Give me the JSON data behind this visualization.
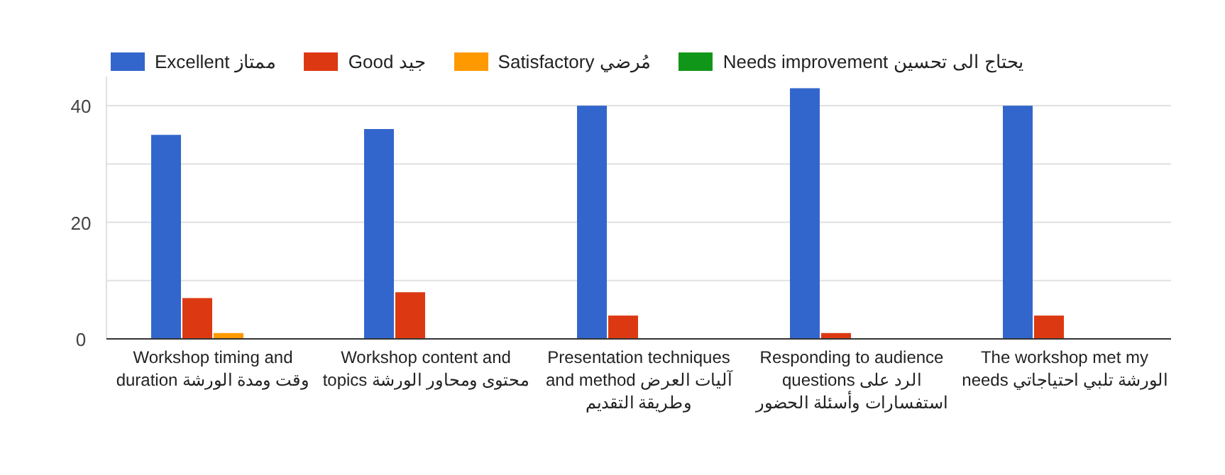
{
  "chart_data": {
    "type": "bar",
    "categories": [
      "Workshop timing and duration وقت ومدة الورشة",
      "Workshop content and topics محتوى ومحاور الورشة",
      "Presentation techniques and method آليات العرض وطريقة التقديم",
      "Responding to audience questions الرد على استفسارات وأسئلة الحضور",
      "The workshop met my needs الورشة تلبي احتياجاتي"
    ],
    "series": [
      {
        "name": "Excellent ممتاز",
        "color": "#3366cc",
        "values": [
          35,
          36,
          40,
          43,
          40
        ]
      },
      {
        "name": "Good جيد",
        "color": "#dc3912",
        "values": [
          7,
          8,
          4,
          1,
          4
        ]
      },
      {
        "name": "Satisfactory مُرضي",
        "color": "#ff9900",
        "values": [
          1,
          0,
          0,
          0,
          0
        ]
      },
      {
        "name": "Needs improvement يحتاج الى تحسين",
        "color": "#109618",
        "values": [
          0,
          0,
          0,
          0,
          0
        ]
      }
    ],
    "ylim": [
      0,
      45
    ],
    "yticks": [
      0,
      {
        "value": 10,
        "label": null
      },
      20,
      {
        "value": 30,
        "label": null
      },
      40
    ],
    "grid": "y",
    "legend": "top left"
  }
}
